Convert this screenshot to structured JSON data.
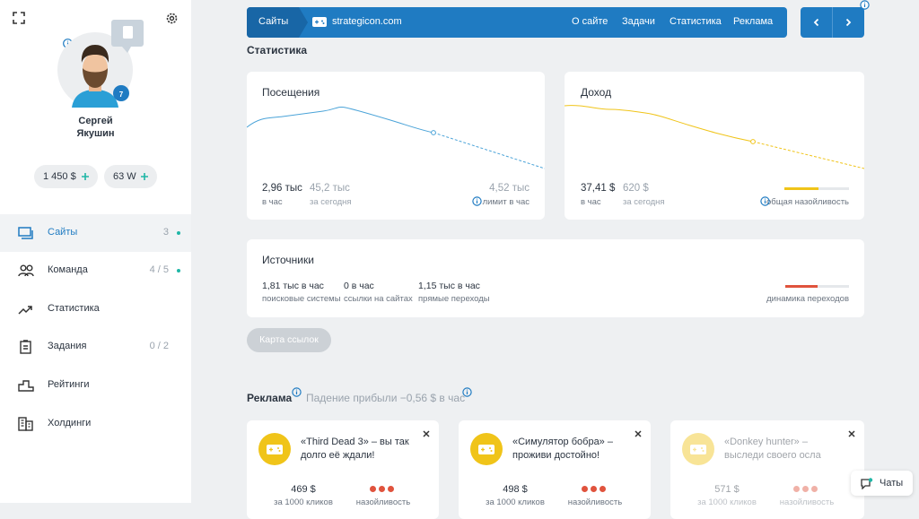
{
  "sidebar": {
    "user": {
      "first_name": "Сергей",
      "last_name": "Якушин",
      "level": 7
    },
    "balances": [
      "1 450 $",
      "63 W"
    ],
    "nav": [
      {
        "label": "Сайты",
        "count": 3
      },
      {
        "label": "Команда",
        "count": "4 / 5"
      },
      {
        "label": "Статистика"
      },
      {
        "label": "Задания",
        "count": "0 / 2"
      },
      {
        "label": "Рейтинги"
      },
      {
        "label": "Холдинги"
      }
    ]
  },
  "topbar": {
    "section": "Сайты",
    "site": "strategicon.com",
    "links": [
      "О сайте",
      "Задачи",
      "Статистика",
      "Реклама"
    ]
  },
  "stats": {
    "title": "Статистика",
    "visits": {
      "title": "Посещения",
      "metrics": [
        {
          "value": "2,96 тыс",
          "label": "в час"
        },
        {
          "value": "45,2 тыс",
          "label": "за сегодня"
        },
        {
          "value": "4,52 тыс",
          "label": "лимит в час"
        }
      ]
    },
    "income": {
      "title": "Доход",
      "metrics": [
        {
          "value": "37,41 $",
          "label": "в час"
        },
        {
          "value": "620 $",
          "label": "за сегодня"
        }
      ],
      "meter_label": "общая назойливость"
    },
    "sources": {
      "title": "Источники",
      "metrics": [
        {
          "value": "1,81 тыс в час",
          "label": "поисковые системы"
        },
        {
          "value": "0 в час",
          "label": "ссылки на сайтах"
        },
        {
          "value": "1,15 тыс в час",
          "label": "прямые переходы"
        }
      ],
      "meter_label": "динамика переходов"
    },
    "button": "Карта ссылок"
  },
  "ads": {
    "title": "Реклама",
    "subtitle": "Падение прибыли −0,56 $ в час",
    "cards": [
      {
        "text": "«Third Dead 3» – вы так долго её ждали!",
        "price": "469 $",
        "price_label": "за 1000 кликов",
        "meter_label": "назойливость"
      },
      {
        "text": "«Симулятор бобра» – проживи достойно!",
        "price": "498 $",
        "price_label": "за 1000 кликов",
        "meter_label": "назойливость"
      },
      {
        "text": "«Donkey hunter» – выследи своего осла",
        "price": "571 $",
        "price_label": "за 1000 кликов",
        "meter_label": "назойливость"
      }
    ]
  },
  "chat": "Чаты"
}
